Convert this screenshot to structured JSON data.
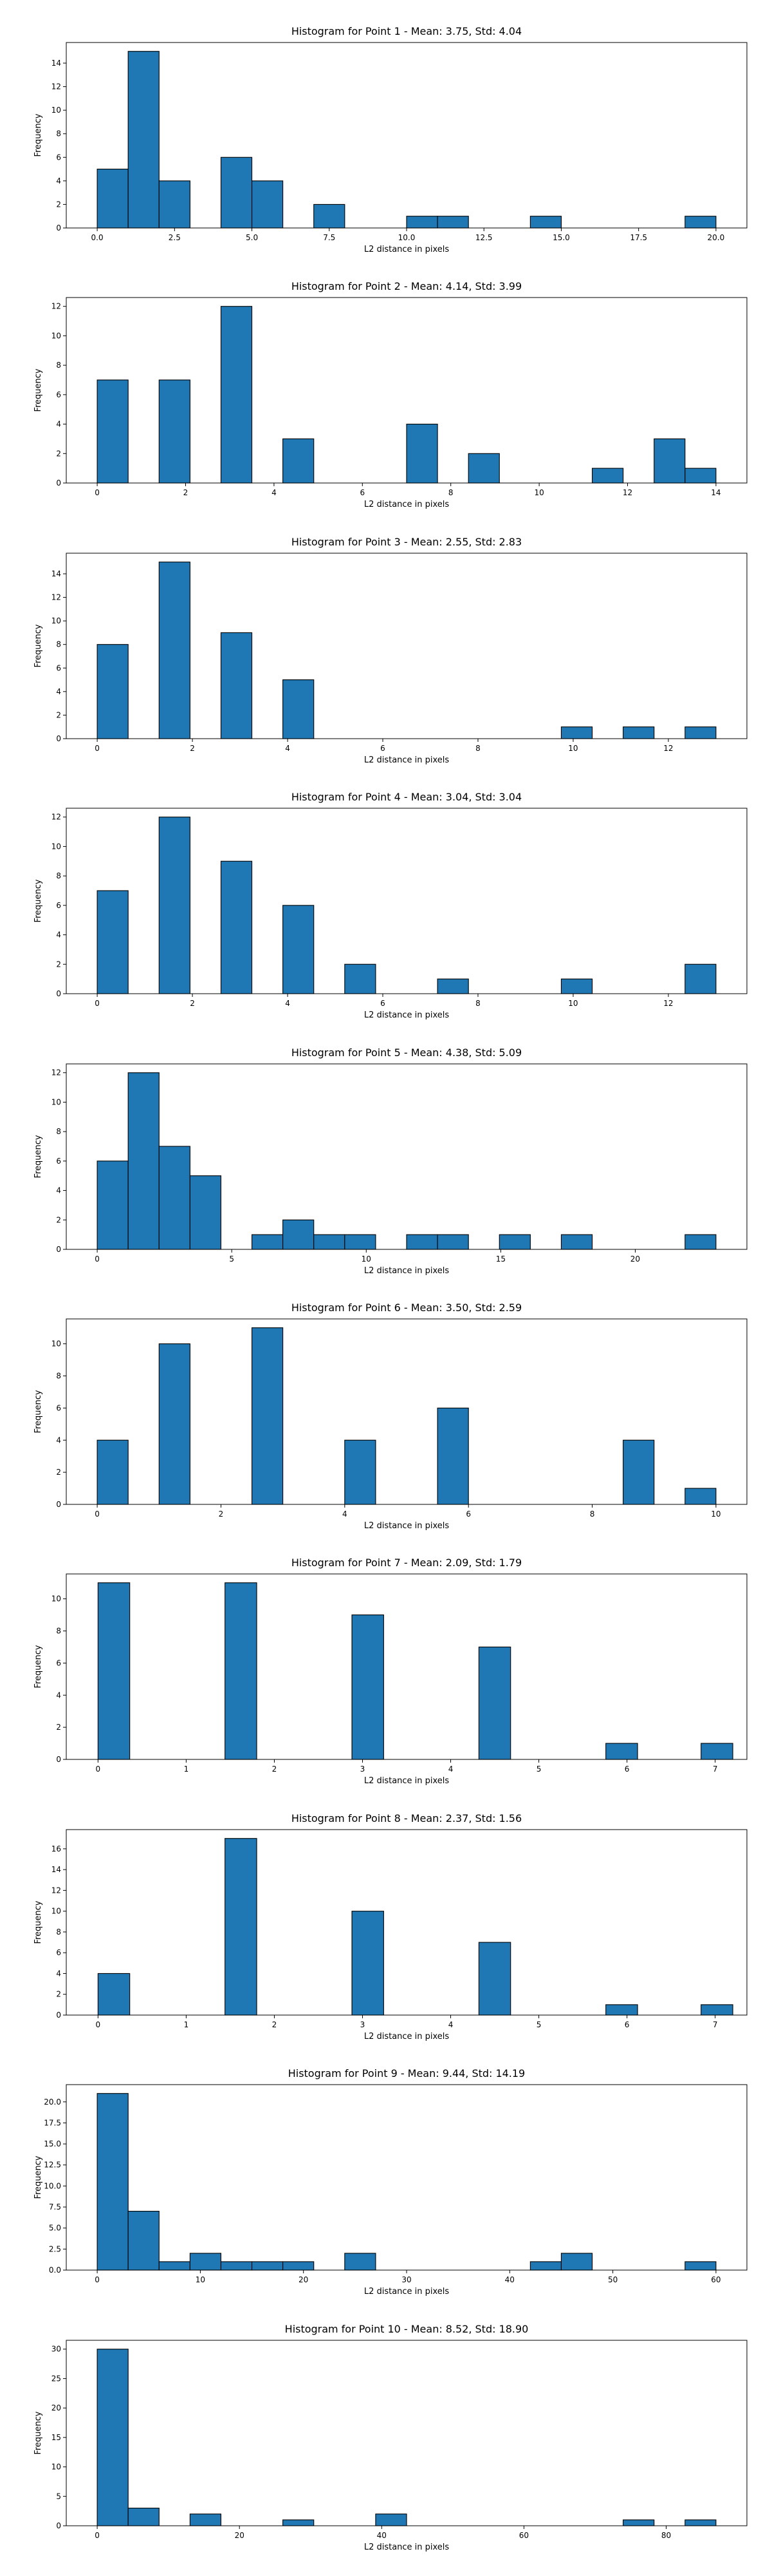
{
  "chart_data": [
    {
      "type": "bar",
      "title": "Histogram for Point 1 - Mean: 3.75, Std: 4.04",
      "xlabel": "L2 distance in pixels",
      "ylabel": "Frequency",
      "xlim": [
        -1.0,
        21.0
      ],
      "ylim": [
        0,
        15.75
      ],
      "xticks": [
        0,
        2.5,
        5,
        7.5,
        10,
        12.5,
        15,
        17.5,
        20
      ],
      "xtick_labels": [
        "0.0",
        "2.5",
        "5.0",
        "7.5",
        "10.0",
        "12.5",
        "15.0",
        "17.5",
        "20.0"
      ],
      "yticks": [
        0,
        2,
        4,
        6,
        8,
        10,
        12,
        14
      ],
      "ytick_labels": [
        "0",
        "2",
        "4",
        "6",
        "8",
        "10",
        "12",
        "14"
      ],
      "bin_edges": [
        0.0,
        1.0,
        2.0,
        3.0,
        4.0,
        5.0,
        6.0,
        7.0,
        8.0,
        9.0,
        10.0,
        11.0,
        12.0,
        13.0,
        14.0,
        15.0,
        16.0,
        17.0,
        18.0,
        19.0,
        20.0
      ],
      "values": [
        5,
        15,
        4,
        0,
        6,
        4,
        0,
        2,
        0,
        0,
        1,
        1,
        0,
        0,
        1,
        0,
        0,
        0,
        0,
        1
      ],
      "grid": false
    },
    {
      "type": "bar",
      "title": "Histogram for Point 2 - Mean: 4.14, Std: 3.99",
      "xlabel": "L2 distance in pixels",
      "ylabel": "Frequency",
      "xlim": [
        -0.7,
        14.7
      ],
      "ylim": [
        0,
        12.6
      ],
      "xticks": [
        0,
        2,
        4,
        6,
        8,
        10,
        12,
        14
      ],
      "xtick_labels": [
        "0",
        "2",
        "4",
        "6",
        "8",
        "10",
        "12",
        "14"
      ],
      "yticks": [
        0,
        2,
        4,
        6,
        8,
        10,
        12
      ],
      "ytick_labels": [
        "0",
        "2",
        "4",
        "6",
        "8",
        "10",
        "12"
      ],
      "bin_edges": [
        0.0,
        0.7,
        1.4,
        2.1,
        2.8,
        3.5,
        4.2,
        4.9,
        5.6,
        6.3,
        7.0,
        7.7,
        8.4,
        9.1,
        9.8,
        10.5,
        11.2,
        11.9,
        12.6,
        13.3,
        14.0
      ],
      "values": [
        7,
        0,
        7,
        0,
        12,
        0,
        3,
        0,
        0,
        0,
        4,
        0,
        2,
        0,
        0,
        0,
        1,
        0,
        3,
        1
      ],
      "grid": false
    },
    {
      "type": "bar",
      "title": "Histogram for Point 3 - Mean: 2.55, Std: 2.83",
      "xlabel": "L2 distance in pixels",
      "ylabel": "Frequency",
      "xlim": [
        -0.65,
        13.65
      ],
      "ylim": [
        0,
        15.75
      ],
      "xticks": [
        0,
        2,
        4,
        6,
        8,
        10,
        12
      ],
      "xtick_labels": [
        "0",
        "2",
        "4",
        "6",
        "8",
        "10",
        "12"
      ],
      "yticks": [
        0,
        2,
        4,
        6,
        8,
        10,
        12,
        14
      ],
      "ytick_labels": [
        "0",
        "2",
        "4",
        "6",
        "8",
        "10",
        "12",
        "14"
      ],
      "bin_edges": [
        0.0,
        0.65,
        1.3,
        1.95,
        2.6,
        3.25,
        3.9,
        4.55,
        5.2,
        5.85,
        6.5,
        7.15,
        7.8,
        8.45,
        9.1,
        9.75,
        10.4,
        11.05,
        11.7,
        12.35,
        13.0
      ],
      "values": [
        8,
        0,
        15,
        0,
        9,
        0,
        5,
        0,
        0,
        0,
        0,
        0,
        0,
        0,
        0,
        1,
        0,
        1,
        0,
        1
      ],
      "grid": false
    },
    {
      "type": "bar",
      "title": "Histogram for Point 4 - Mean: 3.04, Std: 3.04",
      "xlabel": "L2 distance in pixels",
      "ylabel": "Frequency",
      "xlim": [
        -0.65,
        13.65
      ],
      "ylim": [
        0,
        12.6
      ],
      "xticks": [
        0,
        2,
        4,
        6,
        8,
        10,
        12
      ],
      "xtick_labels": [
        "0",
        "2",
        "4",
        "6",
        "8",
        "10",
        "12"
      ],
      "yticks": [
        0,
        2,
        4,
        6,
        8,
        10,
        12
      ],
      "ytick_labels": [
        "0",
        "2",
        "4",
        "6",
        "8",
        "10",
        "12"
      ],
      "bin_edges": [
        0.0,
        0.65,
        1.3,
        1.95,
        2.6,
        3.25,
        3.9,
        4.55,
        5.2,
        5.85,
        6.5,
        7.15,
        7.8,
        8.45,
        9.1,
        9.75,
        10.4,
        11.05,
        11.7,
        12.35,
        13.0
      ],
      "values": [
        7,
        0,
        12,
        0,
        9,
        0,
        6,
        0,
        2,
        0,
        0,
        1,
        0,
        0,
        0,
        1,
        0,
        0,
        0,
        2
      ],
      "grid": false
    },
    {
      "type": "bar",
      "title": "Histogram for Point 5 - Mean: 4.38, Std: 5.09",
      "xlabel": "L2 distance in pixels",
      "ylabel": "Frequency",
      "xlim": [
        -1.15,
        24.15
      ],
      "ylim": [
        0,
        12.6
      ],
      "xticks": [
        0,
        5,
        10,
        15,
        20
      ],
      "xtick_labels": [
        "0",
        "5",
        "10",
        "15",
        "20"
      ],
      "yticks": [
        0,
        2,
        4,
        6,
        8,
        10,
        12
      ],
      "ytick_labels": [
        "0",
        "2",
        "4",
        "6",
        "8",
        "10",
        "12"
      ],
      "bin_edges": [
        0.0,
        1.15,
        2.3,
        3.45,
        4.6,
        5.75,
        6.9,
        8.05,
        9.2,
        10.35,
        11.5,
        12.65,
        13.8,
        14.95,
        16.1,
        17.25,
        18.4,
        19.55,
        20.7,
        21.85,
        23.0
      ],
      "values": [
        6,
        12,
        7,
        5,
        0,
        1,
        2,
        1,
        1,
        0,
        1,
        1,
        0,
        1,
        0,
        1,
        0,
        0,
        0,
        1
      ],
      "grid": false
    },
    {
      "type": "bar",
      "title": "Histogram for Point 6 - Mean: 3.50, Std: 2.59",
      "xlabel": "L2 distance in pixels",
      "ylabel": "Frequency",
      "xlim": [
        -0.5,
        10.5
      ],
      "ylim": [
        0,
        11.55
      ],
      "xticks": [
        0,
        2,
        4,
        6,
        8,
        10
      ],
      "xtick_labels": [
        "0",
        "2",
        "4",
        "6",
        "8",
        "10"
      ],
      "yticks": [
        0,
        2,
        4,
        6,
        8,
        10
      ],
      "ytick_labels": [
        "0",
        "2",
        "4",
        "6",
        "8",
        "10"
      ],
      "bin_edges": [
        0.0,
        0.5,
        1.0,
        1.5,
        2.0,
        2.5,
        3.0,
        3.5,
        4.0,
        4.5,
        5.0,
        5.5,
        6.0,
        6.5,
        7.0,
        7.5,
        8.0,
        8.5,
        9.0,
        9.5,
        10.0
      ],
      "values": [
        4,
        0,
        10,
        0,
        0,
        11,
        0,
        0,
        4,
        0,
        0,
        6,
        0,
        0,
        0,
        0,
        0,
        4,
        0,
        1
      ],
      "grid": false
    },
    {
      "type": "bar",
      "title": "Histogram for Point 7 - Mean: 2.09, Std: 1.79",
      "xlabel": "L2 distance in pixels",
      "ylabel": "Frequency",
      "xlim": [
        -0.36,
        7.36
      ],
      "ylim": [
        0,
        11.55
      ],
      "xticks": [
        0,
        1,
        2,
        3,
        4,
        5,
        6,
        7
      ],
      "xtick_labels": [
        "0",
        "1",
        "2",
        "3",
        "4",
        "5",
        "6",
        "7"
      ],
      "yticks": [
        0,
        2,
        4,
        6,
        8,
        10
      ],
      "ytick_labels": [
        "0",
        "2",
        "4",
        "6",
        "8",
        "10"
      ],
      "bin_edges": [
        0.0,
        0.36,
        0.72,
        1.08,
        1.44,
        1.8,
        2.16,
        2.52,
        2.88,
        3.24,
        3.6,
        3.96,
        4.32,
        4.68,
        5.04,
        5.4,
        5.76,
        6.12,
        6.48,
        6.84,
        7.2
      ],
      "values": [
        11,
        0,
        0,
        0,
        11,
        0,
        0,
        0,
        9,
        0,
        0,
        0,
        7,
        0,
        0,
        0,
        1,
        0,
        0,
        1
      ],
      "grid": false
    },
    {
      "type": "bar",
      "title": "Histogram for Point 8 - Mean: 2.37, Std: 1.56",
      "xlabel": "L2 distance in pixels",
      "ylabel": "Frequency",
      "xlim": [
        -0.36,
        7.36
      ],
      "ylim": [
        0,
        17.85
      ],
      "xticks": [
        0,
        1,
        2,
        3,
        4,
        5,
        6,
        7
      ],
      "xtick_labels": [
        "0",
        "1",
        "2",
        "3",
        "4",
        "5",
        "6",
        "7"
      ],
      "yticks": [
        0,
        2,
        4,
        6,
        8,
        10,
        12,
        14,
        16
      ],
      "ytick_labels": [
        "0",
        "2",
        "4",
        "6",
        "8",
        "10",
        "12",
        "14",
        "16"
      ],
      "bin_edges": [
        0.0,
        0.36,
        0.72,
        1.08,
        1.44,
        1.8,
        2.16,
        2.52,
        2.88,
        3.24,
        3.6,
        3.96,
        4.32,
        4.68,
        5.04,
        5.4,
        5.76,
        6.12,
        6.48,
        6.84,
        7.2
      ],
      "values": [
        4,
        0,
        0,
        0,
        17,
        0,
        0,
        0,
        10,
        0,
        0,
        0,
        7,
        0,
        0,
        0,
        1,
        0,
        0,
        1
      ],
      "grid": false
    },
    {
      "type": "bar",
      "title": "Histogram for Point 9 - Mean: 9.44, Std: 14.19",
      "xlabel": "L2 distance in pixels",
      "ylabel": "Frequency",
      "xlim": [
        -3.0,
        63.0
      ],
      "ylim": [
        0,
        22.05
      ],
      "xticks": [
        0,
        10,
        20,
        30,
        40,
        50,
        60
      ],
      "xtick_labels": [
        "0",
        "10",
        "20",
        "30",
        "40",
        "50",
        "60"
      ],
      "yticks": [
        0,
        2.5,
        5,
        7.5,
        10,
        12.5,
        15,
        17.5,
        20
      ],
      "ytick_labels": [
        "0.0",
        "2.5",
        "5.0",
        "7.5",
        "10.0",
        "12.5",
        "15.0",
        "17.5",
        "20.0"
      ],
      "bin_edges": [
        0.0,
        3.0,
        6.0,
        9.0,
        12.0,
        15.0,
        18.0,
        21.0,
        24.0,
        27.0,
        30.0,
        33.0,
        36.0,
        39.0,
        42.0,
        45.0,
        48.0,
        51.0,
        54.0,
        57.0,
        60.0
      ],
      "values": [
        21,
        7,
        1,
        2,
        1,
        1,
        1,
        0,
        2,
        0,
        0,
        0,
        0,
        0,
        1,
        2,
        0,
        0,
        0,
        1
      ],
      "grid": false
    },
    {
      "type": "bar",
      "title": "Histogram for Point 10 - Mean: 8.52, Std: 18.90",
      "xlabel": "L2 distance in pixels",
      "ylabel": "Frequency",
      "xlim": [
        -4.35,
        91.35
      ],
      "ylim": [
        0,
        31.5
      ],
      "xticks": [
        0,
        20,
        40,
        60,
        80
      ],
      "xtick_labels": [
        "0",
        "20",
        "40",
        "60",
        "80"
      ],
      "yticks": [
        0,
        5,
        10,
        15,
        20,
        25,
        30
      ],
      "ytick_labels": [
        "0",
        "5",
        "10",
        "15",
        "20",
        "25",
        "30"
      ],
      "bin_edges": [
        0.0,
        4.35,
        8.7,
        13.05,
        17.4,
        21.75,
        26.1,
        30.45,
        34.8,
        39.15,
        43.5,
        47.85,
        52.2,
        56.55,
        60.9,
        65.25,
        69.6,
        73.95,
        78.3,
        82.65,
        87.0
      ],
      "values": [
        30,
        3,
        0,
        2,
        0,
        0,
        1,
        0,
        0,
        2,
        0,
        0,
        0,
        0,
        0,
        0,
        0,
        1,
        0,
        1
      ],
      "grid": false
    }
  ],
  "colors": {
    "bar_fill": "#1f77b4",
    "bar_edge": "#000000",
    "axes": "#000000",
    "background": "#ffffff"
  }
}
